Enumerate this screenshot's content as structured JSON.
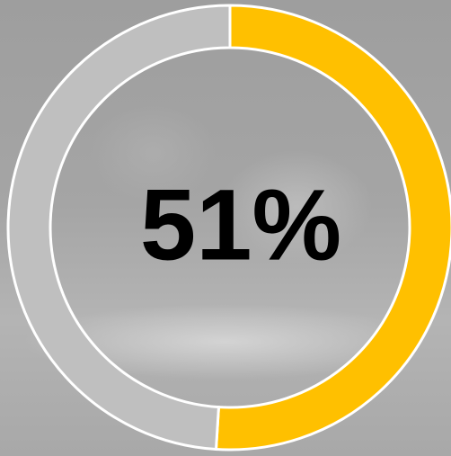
{
  "chart_data": {
    "type": "donut",
    "values": [
      51,
      49
    ],
    "value_labels": [
      "51%",
      null
    ],
    "colors": [
      "#ffc000",
      "#bfbfbf"
    ]
  }
}
